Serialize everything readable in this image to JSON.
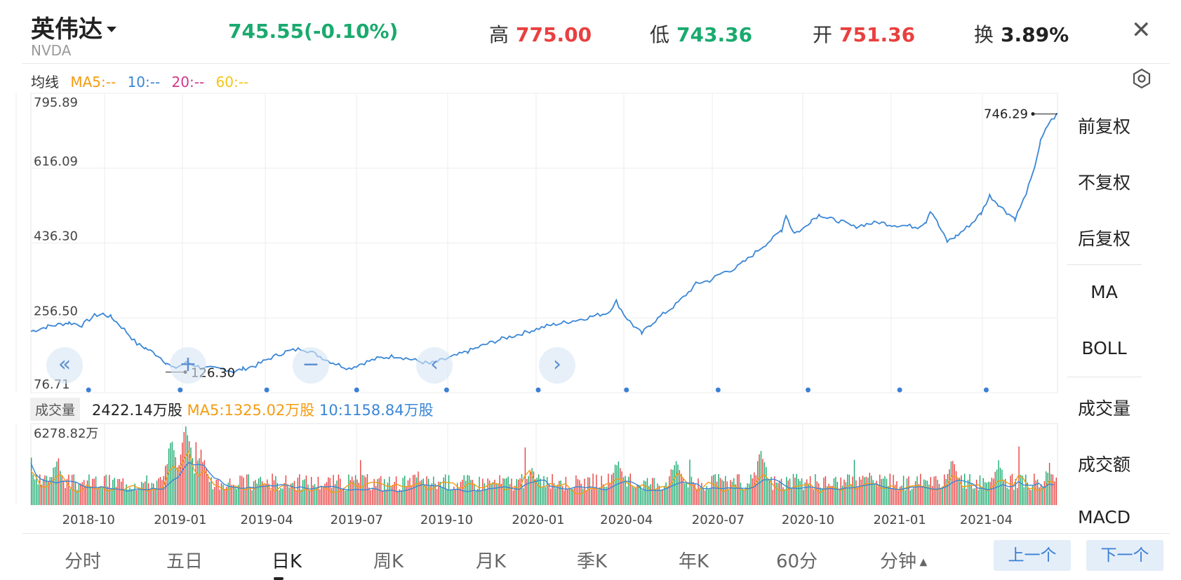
{
  "header": {
    "stock_name": "英伟达",
    "ticker": "NVDA",
    "price_change": "745.55(-0.10%)",
    "high_label": "高",
    "high_value": "775.00",
    "low_label": "低",
    "low_value": "743.36",
    "open_label": "开",
    "open_value": "751.36",
    "turnover_label": "换",
    "turnover_value": "3.89%",
    "close_icon": "close-icon"
  },
  "ma": {
    "label": "均线",
    "ma5": "MA5:--",
    "ma10": "10:--",
    "ma20": "20:--",
    "ma60": "60:--",
    "settings_icon": "settings-icon"
  },
  "colors": {
    "up": "#e8403f",
    "down": "#1aaa6e",
    "line": "#3a86d6",
    "ma5": "#f39c12",
    "ma10": "#3a86d6",
    "ma20": "#d0388e",
    "ma60": "#f5c518",
    "accent": "#3a7fd5"
  },
  "side_menu": [
    {
      "label": "前复权",
      "selected": true
    },
    {
      "label": "不复权",
      "selected": false
    },
    {
      "label": "后复权",
      "selected": false
    },
    {
      "label": "MA",
      "selected": true
    },
    {
      "label": "BOLL",
      "selected": false
    },
    {
      "label": "成交量",
      "selected": true
    },
    {
      "label": "成交额",
      "selected": false
    },
    {
      "label": "MACD",
      "selected": false
    }
  ],
  "volume": {
    "badge": "成交量",
    "value": "2422.14万股",
    "ma5": "MA5:1325.02万股",
    "ma10": "10:1158.84万股",
    "axis_max": "6278.82万"
  },
  "overlay_icons": [
    "fast-back-icon",
    "zoom-in-icon",
    "zoom-out-icon",
    "prev-icon",
    "next-icon"
  ],
  "bottom_tabs": [
    {
      "label": "分时",
      "selected": false
    },
    {
      "label": "五日",
      "selected": false
    },
    {
      "label": "日K",
      "selected": true
    },
    {
      "label": "周K",
      "selected": false
    },
    {
      "label": "月K",
      "selected": false
    },
    {
      "label": "季K",
      "selected": false
    },
    {
      "label": "年K",
      "selected": false
    },
    {
      "label": "60分",
      "selected": false
    },
    {
      "label": "分钟",
      "selected": false
    }
  ],
  "nav": {
    "prev": "上一个",
    "next": "下一个"
  },
  "chart_data": {
    "type": "line",
    "title": "NVDA 日K",
    "y_ticks": [
      "795.89",
      "616.09",
      "436.30",
      "256.50",
      "76.71"
    ],
    "ylim": [
      76.71,
      795.89
    ],
    "x_tick_labels": [
      "2018-10",
      "2019-01",
      "2019-04",
      "2019-07",
      "2019-10",
      "2020-01",
      "2020-04",
      "2020-07",
      "2020-10",
      "2021-01",
      "2021-04"
    ],
    "x_tick_index": [
      68,
      176,
      278,
      384,
      490,
      598,
      702,
      810,
      916,
      1024,
      1126
    ],
    "series": [
      {
        "name": "close",
        "points": [
          [
            0,
            224
          ],
          [
            20,
            236
          ],
          [
            45,
            245
          ],
          [
            60,
            239
          ],
          [
            75,
            262
          ],
          [
            85,
            266
          ],
          [
            95,
            258
          ],
          [
            110,
            229
          ],
          [
            125,
            194
          ],
          [
            135,
            184
          ],
          [
            150,
            166
          ],
          [
            160,
            148
          ],
          [
            168,
            135
          ],
          [
            185,
            150
          ],
          [
            200,
            137
          ],
          [
            215,
            135
          ],
          [
            230,
            133
          ],
          [
            240,
            127
          ],
          [
            250,
            134
          ],
          [
            265,
            142
          ],
          [
            280,
            158
          ],
          [
            300,
            175
          ],
          [
            320,
            183
          ],
          [
            335,
            170
          ],
          [
            350,
            154
          ],
          [
            360,
            146
          ],
          [
            375,
            135
          ],
          [
            390,
            147
          ],
          [
            410,
            160
          ],
          [
            430,
            165
          ],
          [
            450,
            156
          ],
          [
            470,
            146
          ],
          [
            490,
            158
          ],
          [
            515,
            176
          ],
          [
            535,
            192
          ],
          [
            555,
            206
          ],
          [
            570,
            214
          ],
          [
            590,
            226
          ],
          [
            610,
            238
          ],
          [
            630,
            246
          ],
          [
            650,
            254
          ],
          [
            665,
            262
          ],
          [
            680,
            269
          ],
          [
            690,
            296
          ],
          [
            700,
            262
          ],
          [
            710,
            238
          ],
          [
            720,
            219
          ],
          [
            730,
            240
          ],
          [
            745,
            265
          ],
          [
            760,
            288
          ],
          [
            775,
            318
          ],
          [
            785,
            340
          ],
          [
            800,
            346
          ],
          [
            815,
            365
          ],
          [
            830,
            375
          ],
          [
            845,
            398
          ],
          [
            860,
            424
          ],
          [
            875,
            448
          ],
          [
            885,
            468
          ],
          [
            890,
            505
          ],
          [
            895,
            478
          ],
          [
            900,
            460
          ],
          [
            910,
            470
          ],
          [
            920,
            492
          ],
          [
            930,
            505
          ],
          [
            940,
            495
          ],
          [
            955,
            488
          ],
          [
            970,
            475
          ],
          [
            985,
            482
          ],
          [
            1000,
            486
          ],
          [
            1015,
            480
          ],
          [
            1030,
            478
          ],
          [
            1045,
            475
          ],
          [
            1055,
            488
          ],
          [
            1060,
            515
          ],
          [
            1065,
            500
          ],
          [
            1070,
            478
          ],
          [
            1080,
            440
          ],
          [
            1090,
            452
          ],
          [
            1100,
            468
          ],
          [
            1110,
            486
          ],
          [
            1120,
            508
          ],
          [
            1130,
            550
          ],
          [
            1140,
            530
          ],
          [
            1150,
            510
          ],
          [
            1160,
            495
          ],
          [
            1170,
            540
          ],
          [
            1180,
            595
          ],
          [
            1190,
            680
          ],
          [
            1200,
            725
          ],
          [
            1210,
            746.29
          ]
        ]
      }
    ],
    "annotations": {
      "max_label": "746.29",
      "min_label": "126.30",
      "min_index": 182
    },
    "volume": {
      "max": "6278.82万",
      "ma5": "MA5:1325.02万股",
      "ma10": "10:1158.84万股"
    }
  }
}
